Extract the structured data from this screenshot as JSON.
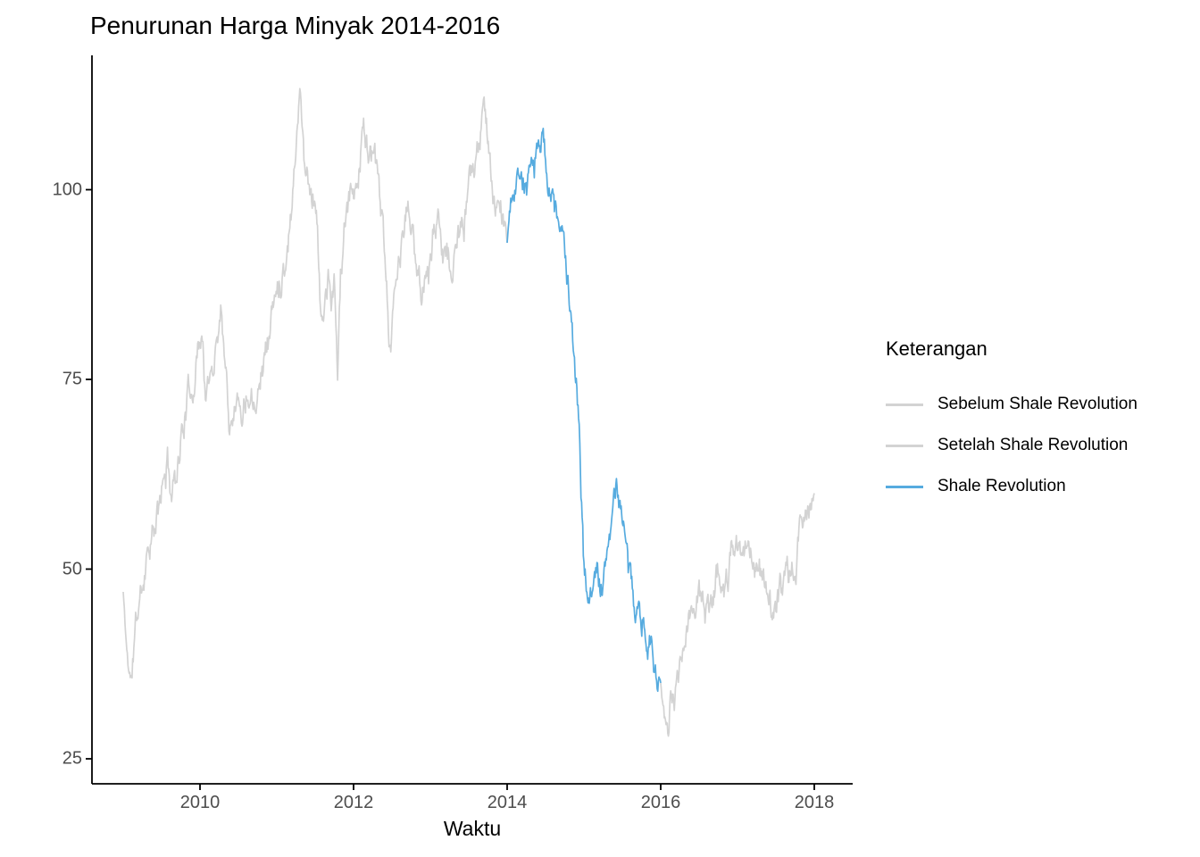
{
  "title": "Penurunan Harga Minyak 2014-2016",
  "axes": {
    "x_label": "Waktu",
    "x_tick_labels": [
      "2010",
      "2012",
      "2014",
      "2016",
      "2018"
    ],
    "y_tick_labels": [
      "25",
      "50",
      "75",
      "100"
    ]
  },
  "legend": {
    "title": "Keterangan",
    "items": [
      {
        "label": "Sebelum Shale Revolution",
        "color": "#D3D3D3"
      },
      {
        "label": "Setelah Shale Revolution",
        "color": "#D3D3D3"
      },
      {
        "label": "Shale Revolution",
        "color": "#56ABDF"
      }
    ]
  },
  "colors": {
    "before_after": "#D3D3D3",
    "shale": "#56ABDF",
    "axis": "#000000",
    "tick_text": "#4d4d4d",
    "background": "#ffffff"
  },
  "chart_data": {
    "type": "line",
    "title": "Penurunan Harga Minyak 2014-2016",
    "xlabel": "Waktu",
    "ylabel": "",
    "x_ticks": [
      2010,
      2012,
      2014,
      2016,
      2018
    ],
    "y_ticks": [
      25,
      50,
      75,
      100
    ],
    "xlim": [
      2008.6,
      2018.5
    ],
    "ylim": [
      21.6,
      117.7
    ],
    "grid": false,
    "legend_title": "Keterangan",
    "legend_position": "right",
    "series": [
      {
        "name": "Sebelum Shale Revolution",
        "color": "#D3D3D3",
        "points": [
          [
            2009.0,
            47
          ],
          [
            2009.04,
            40
          ],
          [
            2009.1,
            35
          ],
          [
            2009.17,
            43
          ],
          [
            2009.25,
            48
          ],
          [
            2009.33,
            54
          ],
          [
            2009.42,
            55
          ],
          [
            2009.5,
            60
          ],
          [
            2009.58,
            64
          ],
          [
            2009.63,
            60
          ],
          [
            2009.67,
            62
          ],
          [
            2009.75,
            67
          ],
          [
            2009.83,
            72
          ],
          [
            2009.92,
            75
          ],
          [
            2009.97,
            79
          ],
          [
            2010.02,
            82
          ],
          [
            2010.08,
            72
          ],
          [
            2010.17,
            77
          ],
          [
            2010.28,
            85
          ],
          [
            2010.38,
            70
          ],
          [
            2010.46,
            73
          ],
          [
            2010.54,
            71
          ],
          [
            2010.63,
            74
          ],
          [
            2010.71,
            73
          ],
          [
            2010.79,
            76
          ],
          [
            2010.88,
            80
          ],
          [
            2010.96,
            85
          ],
          [
            2011.04,
            88
          ],
          [
            2011.13,
            92
          ],
          [
            2011.21,
            100
          ],
          [
            2011.25,
            107
          ],
          [
            2011.3,
            113
          ],
          [
            2011.38,
            102
          ],
          [
            2011.46,
            100
          ],
          [
            2011.52,
            98
          ],
          [
            2011.58,
            81
          ],
          [
            2011.63,
            86
          ],
          [
            2011.67,
            88
          ],
          [
            2011.71,
            84
          ],
          [
            2011.75,
            88
          ],
          [
            2011.79,
            76
          ],
          [
            2011.83,
            88
          ],
          [
            2011.88,
            94
          ],
          [
            2011.96,
            99
          ],
          [
            2012.04,
            101
          ],
          [
            2012.13,
            108
          ],
          [
            2012.21,
            105
          ],
          [
            2012.29,
            103
          ],
          [
            2012.38,
            95
          ],
          [
            2012.46,
            79
          ],
          [
            2012.54,
            86
          ],
          [
            2012.63,
            93
          ],
          [
            2012.71,
            98
          ],
          [
            2012.79,
            92
          ],
          [
            2012.88,
            87
          ],
          [
            2012.96,
            89
          ],
          [
            2013.04,
            94
          ],
          [
            2013.13,
            96
          ],
          [
            2013.21,
            91
          ],
          [
            2013.29,
            89
          ],
          [
            2013.38,
            94
          ],
          [
            2013.46,
            96
          ],
          [
            2013.54,
            102
          ],
          [
            2013.63,
            106
          ],
          [
            2013.71,
            110
          ],
          [
            2013.79,
            102
          ],
          [
            2013.88,
            97
          ],
          [
            2013.96,
            96
          ],
          [
            2014.0,
            93
          ]
        ]
      },
      {
        "name": "Setelah Shale Revolution",
        "color": "#D3D3D3",
        "points": [
          [
            2016.0,
            35
          ],
          [
            2016.04,
            31
          ],
          [
            2016.09,
            27
          ],
          [
            2016.13,
            32
          ],
          [
            2016.17,
            31
          ],
          [
            2016.25,
            38
          ],
          [
            2016.33,
            41
          ],
          [
            2016.42,
            45
          ],
          [
            2016.5,
            49
          ],
          [
            2016.58,
            44
          ],
          [
            2016.67,
            46
          ],
          [
            2016.75,
            50
          ],
          [
            2016.83,
            45
          ],
          [
            2016.92,
            52
          ],
          [
            2017.0,
            54
          ],
          [
            2017.08,
            53
          ],
          [
            2017.17,
            54
          ],
          [
            2017.25,
            50
          ],
          [
            2017.33,
            49
          ],
          [
            2017.42,
            46
          ],
          [
            2017.5,
            44
          ],
          [
            2017.58,
            47
          ],
          [
            2017.67,
            49
          ],
          [
            2017.75,
            51
          ],
          [
            2017.83,
            55
          ],
          [
            2017.92,
            58
          ],
          [
            2018.0,
            60
          ]
        ]
      },
      {
        "name": "Shale Revolution",
        "color": "#56ABDF",
        "points": [
          [
            2014.0,
            93
          ],
          [
            2014.04,
            98
          ],
          [
            2014.08,
            101
          ],
          [
            2014.17,
            103
          ],
          [
            2014.25,
            100
          ],
          [
            2014.33,
            102
          ],
          [
            2014.42,
            106
          ],
          [
            2014.46,
            107
          ],
          [
            2014.5,
            104
          ],
          [
            2014.58,
            99
          ],
          [
            2014.67,
            96
          ],
          [
            2014.75,
            92
          ],
          [
            2014.83,
            83
          ],
          [
            2014.92,
            71
          ],
          [
            2015.0,
            50
          ],
          [
            2015.08,
            46
          ],
          [
            2015.17,
            50
          ],
          [
            2015.25,
            47
          ],
          [
            2015.33,
            55
          ],
          [
            2015.42,
            60
          ],
          [
            2015.5,
            58
          ],
          [
            2015.58,
            49
          ],
          [
            2015.67,
            46
          ],
          [
            2015.75,
            44
          ],
          [
            2015.83,
            41
          ],
          [
            2015.92,
            37
          ],
          [
            2016.0,
            35
          ]
        ]
      }
    ]
  }
}
